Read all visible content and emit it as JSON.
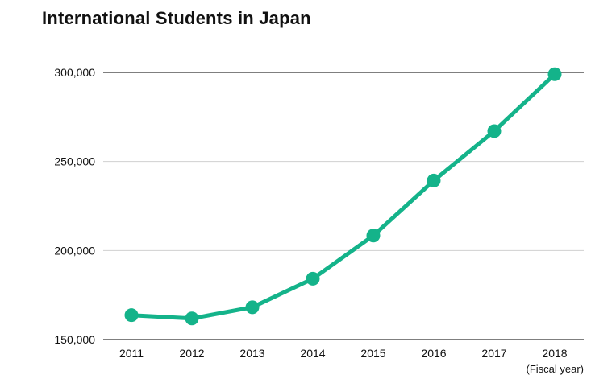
{
  "chart_data": {
    "type": "line",
    "title": "International Students in Japan",
    "xlabel": "",
    "ylabel": "",
    "x_note": "(Fiscal year)",
    "categories": [
      "2011",
      "2012",
      "2013",
      "2014",
      "2015",
      "2016",
      "2017",
      "2018"
    ],
    "values": [
      163697,
      161848,
      168145,
      184155,
      208379,
      239287,
      267042,
      298980
    ],
    "ylim": [
      150000,
      300000
    ],
    "yticks": [
      150000,
      200000,
      250000,
      300000
    ],
    "ytick_labels": [
      "150,000",
      "200,000",
      "250,000",
      "300,000"
    ],
    "grid": true,
    "legend": "none",
    "line_color": "#14b38a"
  }
}
